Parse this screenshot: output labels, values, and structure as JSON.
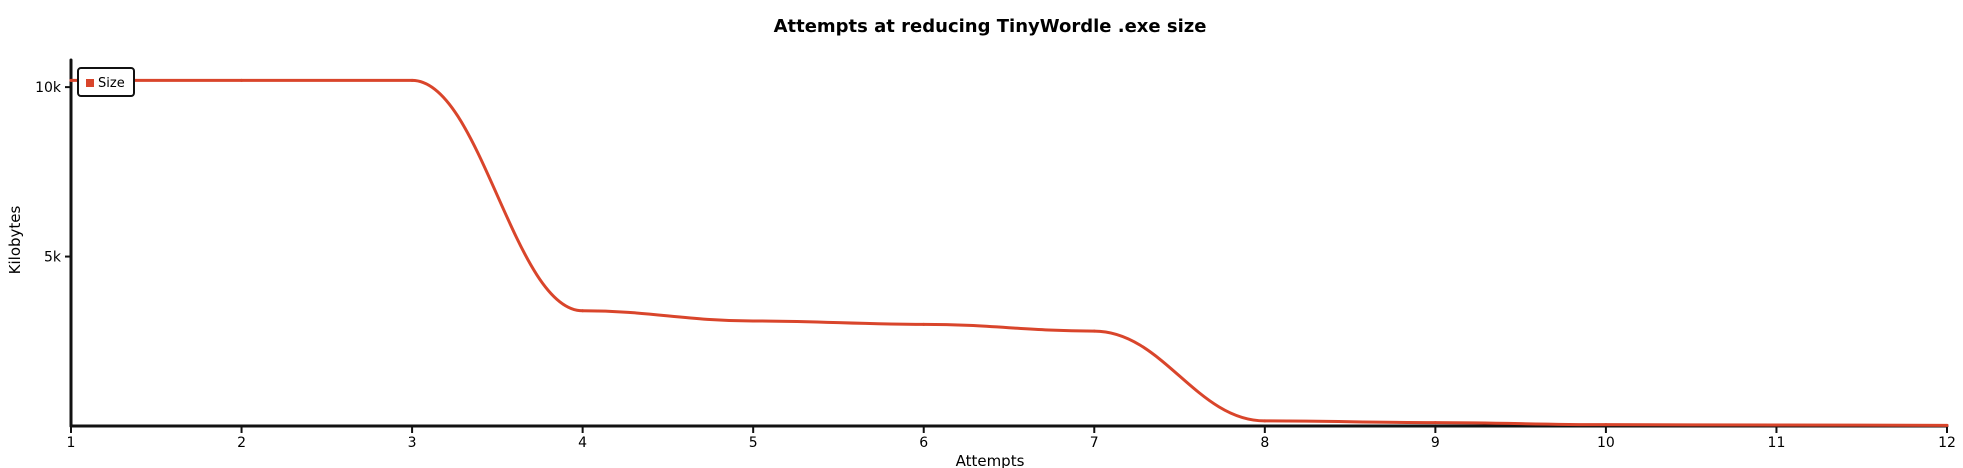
{
  "chart_data": {
    "type": "line",
    "title": "Attempts at reducing TinyWordle .exe size",
    "xlabel": "Attempts",
    "ylabel": "Kilobytes",
    "x": [
      1,
      2,
      3,
      4,
      5,
      6,
      7,
      8,
      9,
      10,
      11,
      12
    ],
    "xlim": [
      1,
      12
    ],
    "ylim": [
      0,
      10800
    ],
    "x_ticks": [
      "1",
      "2",
      "3",
      "4",
      "5",
      "6",
      "7",
      "8",
      "9",
      "10",
      "11",
      "12"
    ],
    "y_ticks": [
      {
        "value": 5000,
        "label": "5k"
      },
      {
        "value": 10000,
        "label": "10k"
      }
    ],
    "grid": false,
    "legend_position": "top-left",
    "series": [
      {
        "name": "Size",
        "color": "#d9452b",
        "values": [
          10200,
          10200,
          10200,
          3400,
          3100,
          3000,
          2800,
          150,
          100,
          40,
          30,
          20
        ]
      }
    ]
  }
}
